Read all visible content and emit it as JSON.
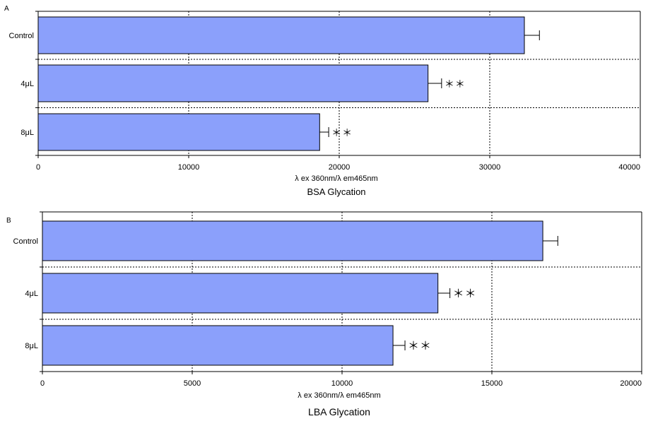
{
  "colors": {
    "bar_fill": "#8ba0fb",
    "bar_stroke": "#000000",
    "grid": "#000000"
  },
  "chart_data": [
    {
      "type": "bar",
      "orientation": "horizontal",
      "panel_label": "A",
      "title": "BSA Glycation",
      "xlabel": "λ ex 360nm/λ em465nm",
      "ylabel": "",
      "categories": [
        "Control",
        "4μL",
        "8μL"
      ],
      "values": [
        32300,
        25900,
        18700
      ],
      "errors": [
        1000,
        900,
        600
      ],
      "annotations": [
        "",
        "＊＊",
        "＊＊"
      ],
      "xlim": [
        0,
        40000
      ],
      "xticks": [
        0,
        10000,
        20000,
        30000,
        40000
      ],
      "grid": true
    },
    {
      "type": "bar",
      "orientation": "horizontal",
      "panel_label": "B",
      "title": "LBA Glycation",
      "xlabel": "λ ex 360nm/λ em465nm",
      "ylabel": "",
      "categories": [
        "Control",
        "4μL",
        "8μL"
      ],
      "values": [
        16700,
        13200,
        11700
      ],
      "errors": [
        500,
        400,
        400
      ],
      "annotations": [
        "",
        "＊＊",
        "＊＊"
      ],
      "xlim": [
        0,
        20000
      ],
      "xticks": [
        0,
        5000,
        10000,
        15000,
        20000
      ],
      "grid": true
    }
  ]
}
